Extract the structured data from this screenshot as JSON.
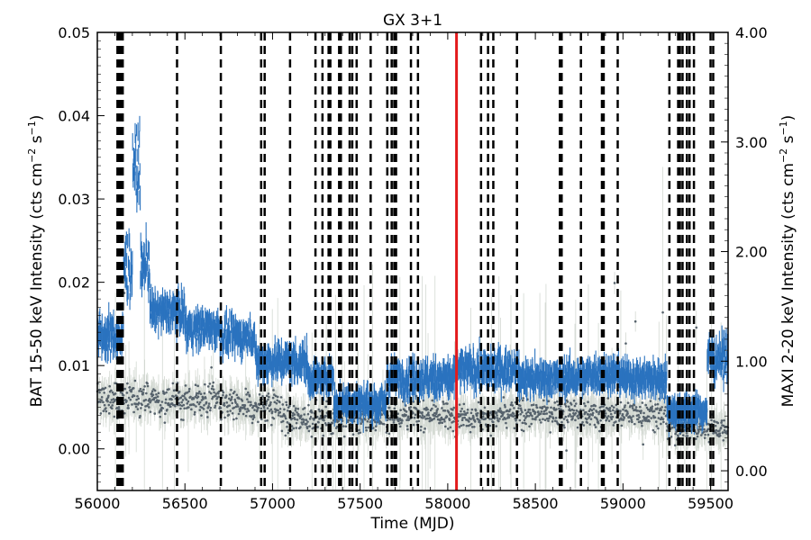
{
  "chart_data": {
    "type": "scatter",
    "title": "GX 3+1",
    "xlabel": "Time (MJD)",
    "ylabel_left": "BAT 15-50 keV Intensity (cts cm",
    "ylabel_left_exp1": "−2",
    "ylabel_left_mid": " s",
    "ylabel_left_exp2": "−1",
    "ylabel_left_end": ")",
    "ylabel_right": "MAXI 2-20 keV Intensity (cts cm",
    "ylabel_right_exp1": "−2",
    "ylabel_right_mid": " s",
    "ylabel_right_exp2": "−1",
    "ylabel_right_end": ")",
    "xlim": [
      56000,
      59600
    ],
    "ylim_left": [
      -0.005,
      0.05
    ],
    "ylim_right": [
      -0.18,
      4.0
    ],
    "x_ticks": [
      "56000",
      "56500",
      "57000",
      "57500",
      "58000",
      "58500",
      "59000",
      "59500"
    ],
    "y_left_ticks": [
      "0.00",
      "0.01",
      "0.02",
      "0.03",
      "0.04",
      "0.05"
    ],
    "y_right_ticks": [
      "0.00",
      "1.00",
      "2.00",
      "3.00",
      "4.00"
    ],
    "red_line_x": 58050,
    "dashed_lines_x": [
      56115,
      56125,
      56130,
      56140,
      56145,
      56455,
      56705,
      56935,
      56955,
      57100,
      57245,
      57285,
      57320,
      57330,
      57380,
      57390,
      57440,
      57455,
      57480,
      57560,
      57655,
      57680,
      57695,
      57705,
      57790,
      57830,
      58190,
      58230,
      58260,
      58395,
      58640,
      58650,
      58760,
      58880,
      58890,
      58970,
      59265,
      59315,
      59325,
      59340,
      59365,
      59380,
      59405,
      59500,
      59515
    ],
    "series": [
      {
        "name": "BAT",
        "color": "#2b73bf",
        "segments": [
          {
            "x0": 56000,
            "x1": 56150,
            "y": 0.0135,
            "noise": 0.0022
          },
          {
            "x0": 56150,
            "x1": 56200,
            "y": 0.022,
            "noise": 0.004
          },
          {
            "x0": 56200,
            "x1": 56245,
            "y": 0.034,
            "noise": 0.0035
          },
          {
            "x0": 56245,
            "x1": 56300,
            "y": 0.022,
            "noise": 0.003
          },
          {
            "x0": 56300,
            "x1": 56500,
            "y": 0.0165,
            "noise": 0.0018
          },
          {
            "x0": 56500,
            "x1": 56700,
            "y": 0.0145,
            "noise": 0.0018
          },
          {
            "x0": 56700,
            "x1": 56900,
            "y": 0.0135,
            "noise": 0.0018
          },
          {
            "x0": 56900,
            "x1": 57200,
            "y": 0.0105,
            "noise": 0.0018
          },
          {
            "x0": 57200,
            "x1": 57350,
            "y": 0.0085,
            "noise": 0.0016
          },
          {
            "x0": 57350,
            "x1": 57650,
            "y": 0.0055,
            "noise": 0.0016
          },
          {
            "x0": 57650,
            "x1": 58050,
            "y": 0.0085,
            "noise": 0.0018
          },
          {
            "x0": 58050,
            "x1": 58400,
            "y": 0.0095,
            "noise": 0.0018
          },
          {
            "x0": 58400,
            "x1": 58800,
            "y": 0.0085,
            "noise": 0.0016
          },
          {
            "x0": 58800,
            "x1": 59000,
            "y": 0.009,
            "noise": 0.0016
          },
          {
            "x0": 59000,
            "x1": 59250,
            "y": 0.0085,
            "noise": 0.0016
          },
          {
            "x0": 59250,
            "x1": 59480,
            "y": 0.0045,
            "noise": 0.0014
          },
          {
            "x0": 59480,
            "x1": 59600,
            "y": 0.011,
            "noise": 0.002
          }
        ]
      },
      {
        "name": "MAXI",
        "color": "#56626c",
        "errorbar_color": "#d3d9d2",
        "segments": [
          {
            "x0": 56000,
            "x1": 56700,
            "y": 0.65,
            "noise": 0.14
          },
          {
            "x0": 56700,
            "x1": 57050,
            "y": 0.58,
            "noise": 0.14
          },
          {
            "x0": 57050,
            "x1": 57700,
            "y": 0.48,
            "noise": 0.13
          },
          {
            "x0": 57700,
            "x1": 58400,
            "y": 0.5,
            "noise": 0.12
          },
          {
            "x0": 58400,
            "x1": 59250,
            "y": 0.52,
            "noise": 0.12
          },
          {
            "x0": 59250,
            "x1": 59600,
            "y": 0.4,
            "noise": 0.12
          }
        ]
      }
    ]
  }
}
